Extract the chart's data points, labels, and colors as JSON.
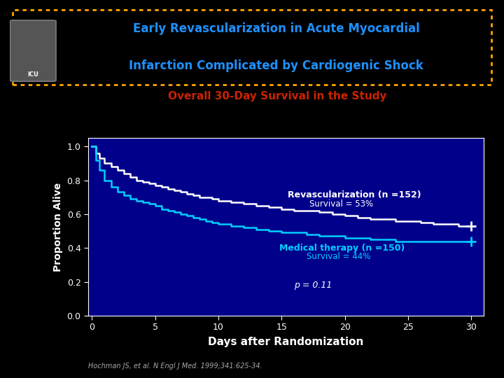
{
  "title_line1": "Early Revascularization in Acute Myocardial",
  "title_line2": "Infarction Complicated by Cardiogenic Shock",
  "subtitle": "Overall 30-Day Survival in the Study",
  "xlabel": "Days after Randomization",
  "ylabel": "Proportion Alive",
  "background_color": "#000000",
  "plot_bg_color": "#00008B",
  "title_color": "#1E90FF",
  "subtitle_color": "#CC2200",
  "axis_label_color": "#FFFFFF",
  "tick_label_color": "#FFFFFF",
  "citation": "Hochman JS, et al. N Engl J Med. 1999;341:625-34.",
  "revasc_label": "Revascularization (n =152)",
  "revasc_survival": "Survival = 53%",
  "medical_label": "Medical therapy (n =150)",
  "medical_survival": "Survival = 44%",
  "pvalue": "p = 0.11",
  "revasc_color": "#FFFFFF",
  "medical_color": "#00CFFF",
  "border_color": "#FFA500",
  "ylim": [
    0.0,
    1.05
  ],
  "xlim": [
    -0.3,
    31
  ],
  "yticks": [
    0.0,
    0.2,
    0.4,
    0.6,
    0.8,
    1.0
  ],
  "xticks": [
    0,
    5,
    10,
    15,
    20,
    25,
    30
  ],
  "revasc_x": [
    0,
    0.3,
    0.6,
    1,
    1.5,
    2,
    2.5,
    3,
    3.5,
    4,
    4.5,
    5,
    5.5,
    6,
    6.5,
    7,
    7.5,
    8,
    8.5,
    9,
    9.5,
    10,
    11,
    12,
    13,
    14,
    15,
    16,
    17,
    18,
    19,
    20,
    21,
    22,
    23,
    24,
    25,
    26,
    27,
    28,
    29,
    30
  ],
  "revasc_y": [
    1.0,
    0.96,
    0.93,
    0.9,
    0.88,
    0.86,
    0.84,
    0.82,
    0.8,
    0.79,
    0.78,
    0.77,
    0.76,
    0.75,
    0.74,
    0.73,
    0.72,
    0.71,
    0.7,
    0.7,
    0.69,
    0.68,
    0.67,
    0.66,
    0.65,
    0.64,
    0.63,
    0.62,
    0.62,
    0.61,
    0.6,
    0.59,
    0.58,
    0.57,
    0.57,
    0.56,
    0.56,
    0.55,
    0.54,
    0.54,
    0.53,
    0.53
  ],
  "medical_x": [
    0,
    0.3,
    0.6,
    1,
    1.5,
    2,
    2.5,
    3,
    3.5,
    4,
    4.5,
    5,
    5.5,
    6,
    6.5,
    7,
    7.5,
    8,
    8.5,
    9,
    9.5,
    10,
    11,
    12,
    13,
    14,
    15,
    16,
    17,
    18,
    19,
    20,
    21,
    22,
    23,
    24,
    25,
    26,
    27,
    28,
    29,
    30
  ],
  "medical_y": [
    1.0,
    0.92,
    0.86,
    0.8,
    0.76,
    0.73,
    0.71,
    0.69,
    0.68,
    0.67,
    0.66,
    0.65,
    0.63,
    0.62,
    0.61,
    0.6,
    0.59,
    0.58,
    0.57,
    0.56,
    0.55,
    0.54,
    0.53,
    0.52,
    0.51,
    0.5,
    0.49,
    0.49,
    0.48,
    0.47,
    0.47,
    0.46,
    0.46,
    0.45,
    0.45,
    0.44,
    0.44,
    0.44,
    0.44,
    0.44,
    0.44,
    0.44
  ]
}
